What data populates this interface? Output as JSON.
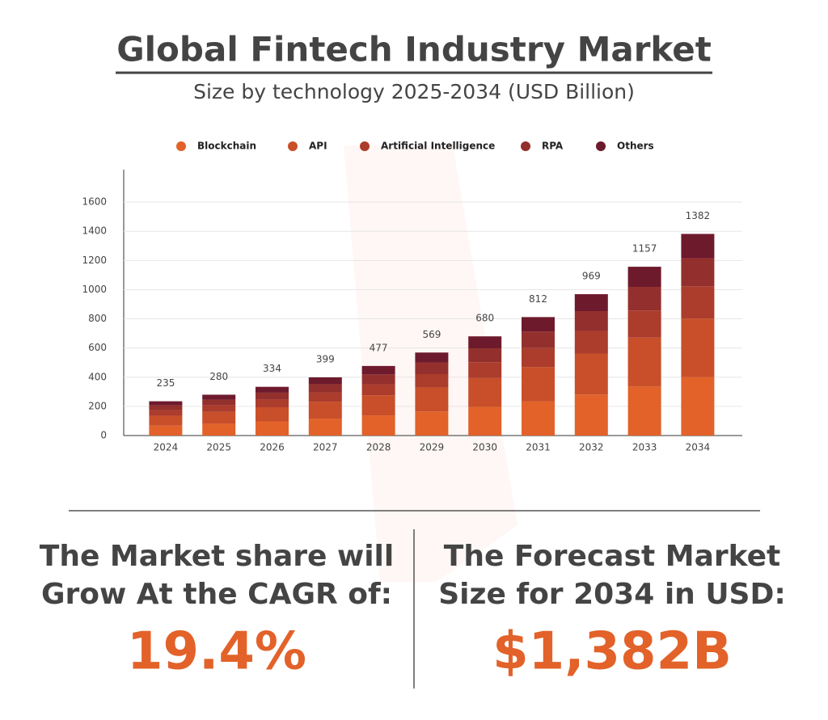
{
  "chart_data": {
    "type": "stacked_bar",
    "title": "Global Fintech Industry Market",
    "subtitle": "Size by technology 2025-2034 (USD Billion)",
    "categories": [
      "2024",
      "2025",
      "2026",
      "2027",
      "2028",
      "2029",
      "2030",
      "2031",
      "2032",
      "2033",
      "2034"
    ],
    "series": [
      {
        "name": "Blockchain",
        "color": "#e2622a",
        "values": [
          68,
          81,
          97,
          116,
          138,
          165,
          197,
          235,
          281,
          336,
          401
        ]
      },
      {
        "name": "API",
        "color": "#c84f29",
        "values": [
          68,
          81,
          97,
          116,
          138,
          165,
          197,
          235,
          281,
          336,
          401
        ]
      },
      {
        "name": "Artificial Intelligence",
        "color": "#ac3c2c",
        "values": [
          38,
          45,
          53,
          64,
          76,
          91,
          109,
          130,
          155,
          185,
          221
        ]
      },
      {
        "name": "RPA",
        "color": "#93302d",
        "values": [
          33,
          39,
          47,
          56,
          67,
          80,
          95,
          114,
          136,
          162,
          193
        ]
      },
      {
        "name": "Others",
        "color": "#6e1a2d",
        "values": [
          28,
          34,
          40,
          47,
          58,
          68,
          82,
          98,
          116,
          138,
          166
        ]
      }
    ],
    "total_labels": [
      235,
      280,
      334,
      399,
      477,
      569,
      680,
      812,
      969,
      1157,
      1382
    ],
    "ylim": [
      0,
      1800
    ],
    "yticks": [
      0,
      200,
      400,
      600,
      800,
      1000,
      1200,
      1400,
      1600
    ],
    "grid": true,
    "legend": "top"
  },
  "stats": [
    {
      "lines": [
        "The Market share will",
        "Grow At the CAGR of:"
      ],
      "value": "19.4%"
    },
    {
      "lines": [
        "The Forecast Market",
        "Size for 2034 in USD:"
      ],
      "value": "$1,382B"
    }
  ]
}
